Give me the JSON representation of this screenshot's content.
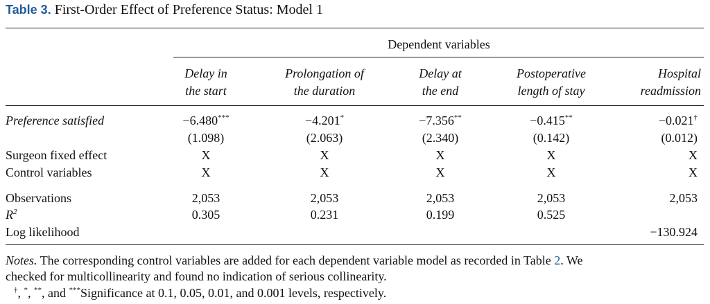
{
  "title": {
    "label": "Table 3.",
    "text": "First-Order Effect of Preference Status: Model 1"
  },
  "spanner": "Dependent variables",
  "columns": [
    {
      "line1": "Delay in",
      "line2": "the start"
    },
    {
      "line1": "Prolongation of",
      "line2": "the duration"
    },
    {
      "line1": "Delay at",
      "line2": "the end"
    },
    {
      "line1": "Postoperative",
      "line2": "length of stay"
    },
    {
      "line1": "Hospital",
      "line2": "readmission"
    }
  ],
  "rows": [
    {
      "label": "Preference satisfied",
      "italic": true,
      "cells": [
        {
          "value": "−6.480",
          "sig": "***"
        },
        {
          "value": "−4.201",
          "sig": "*"
        },
        {
          "value": "−7.356",
          "sig": "**"
        },
        {
          "value": "−0.415",
          "sig": "**"
        },
        {
          "value": "−0.021",
          "sig": "†"
        }
      ]
    },
    {
      "label": null,
      "cells": [
        "(1.098)",
        "(2.063)",
        "(2.340)",
        "(0.142)",
        "(0.012)"
      ]
    },
    {
      "label": "Surgeon fixed effect",
      "cells": [
        "X",
        "X",
        "X",
        "X",
        "X"
      ]
    },
    {
      "label": "Control variables",
      "cells": [
        "X",
        "X",
        "X",
        "X",
        "X"
      ]
    },
    {
      "label": "Observations",
      "cells": [
        "2,053",
        "2,053",
        "2,053",
        "2,053",
        "2,053"
      ]
    },
    {
      "label": "R",
      "label_sup": "2",
      "italic": true,
      "cells": [
        "0.305",
        "0.231",
        "0.199",
        "0.525",
        null
      ]
    },
    {
      "label": "Log likelihood",
      "cells": [
        null,
        null,
        null,
        null,
        "−130.924"
      ]
    }
  ],
  "notes": {
    "label": "Notes.",
    "text1": " The corresponding control variables are added for each dependent variable model as recorded in Table ",
    "link": "2",
    "text2": ". We",
    "text3": "checked for multicollinearity and found no indication of serious collinearity.",
    "significance": [
      {
        "sup": "†"
      },
      {
        "text": ", "
      },
      {
        "sup": "*"
      },
      {
        "text": ", "
      },
      {
        "sup": "**"
      },
      {
        "text": ", and "
      },
      {
        "sup": "***"
      },
      {
        "text": "Significance at 0.1, 0.05, 0.01, and 0.001 levels, respectively."
      }
    ]
  }
}
